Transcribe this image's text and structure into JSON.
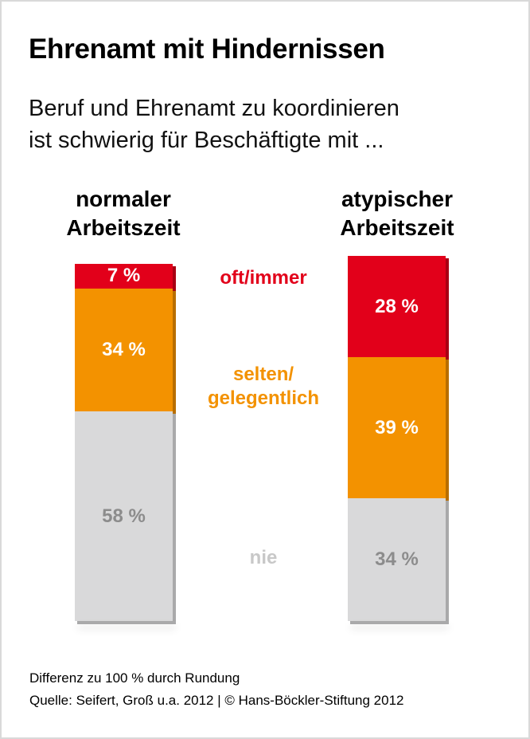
{
  "title": "Ehrenamt mit Hindernissen",
  "subtitle": [
    "Beruf und Ehrenamt zu koordinieren",
    "ist schwierig für Beschäftigte mit ..."
  ],
  "footnote": "Differenz zu 100 % durch Rundung",
  "source": "Quelle: Seifert, Groß u.a. 2012 | © Hans-Böckler-Stiftung 2012",
  "chart_data": {
    "type": "bar",
    "stacked": true,
    "categories": [
      "normaler Arbeitszeit",
      "atypischer Arbeitszeit"
    ],
    "category_lines": [
      [
        "normaler",
        "Arbeitszeit"
      ],
      [
        "atypischer",
        "Arbeitszeit"
      ]
    ],
    "series": [
      {
        "name": "nie",
        "values": [
          58,
          34
        ],
        "labels": [
          "58 %",
          "34 %"
        ],
        "color": "#d9d9da",
        "text_color": "#8c8c8c"
      },
      {
        "name": "selten/ gelegentlich",
        "name_lines": [
          "selten/",
          "gelegentlich"
        ],
        "values": [
          34,
          39
        ],
        "labels": [
          "34 %",
          "39 %"
        ],
        "color": "#f39200",
        "text_color": "#ffffff"
      },
      {
        "name": "oft/immer",
        "values": [
          7,
          28
        ],
        "labels": [
          "7 %",
          "28 %"
        ],
        "color": "#e2001a",
        "text_color": "#ffffff"
      }
    ],
    "series_label_colors": {
      "nie": "#c8c8c8",
      "selten/ gelegentlich": "#f39200",
      "oft/immer": "#e2001a"
    }
  }
}
